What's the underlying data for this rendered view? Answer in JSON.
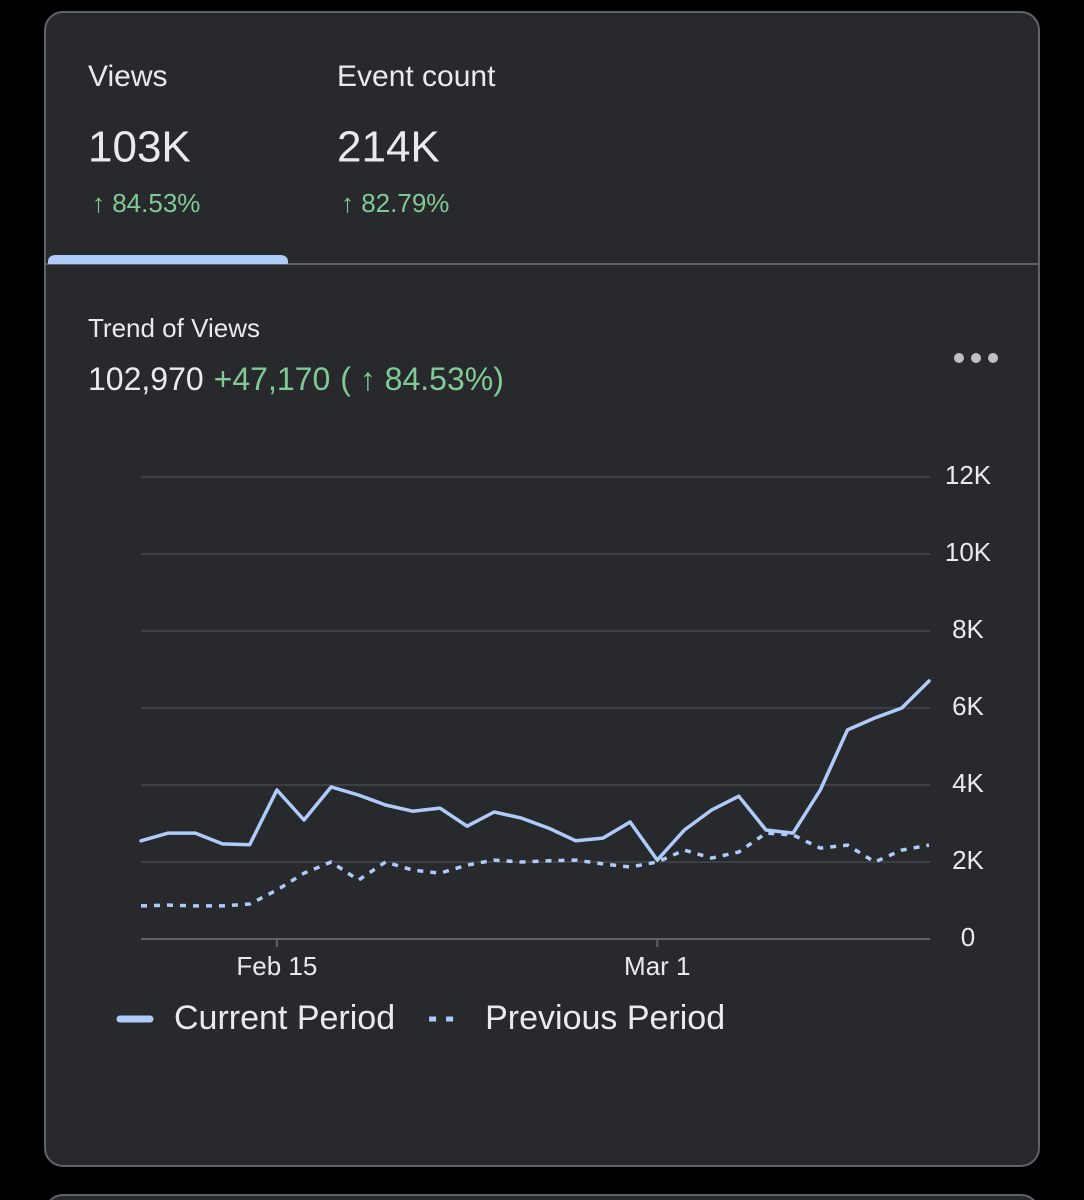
{
  "metrics": [
    {
      "label": "Views",
      "value": "103K",
      "change": "↑ 84.53%"
    },
    {
      "label": "Event count",
      "value": "214K",
      "change": "↑ 82.79%"
    }
  ],
  "chart_data": {
    "type": "line",
    "title": "Trend of Views",
    "total": "102,970",
    "change": "+47,170",
    "change_percent": "( ↑ 84.53%)",
    "categories": [
      null,
      null,
      null,
      null,
      null,
      "Feb 15",
      null,
      null,
      null,
      null,
      null,
      null,
      null,
      null,
      null,
      null,
      null,
      null,
      null,
      "Mar 1",
      null,
      null,
      null,
      null,
      null,
      null,
      null,
      null,
      null,
      null
    ],
    "series": [
      {
        "name": "Current Period",
        "color": "#aecbfa",
        "style": "solid",
        "values": [
          2550,
          2750,
          2750,
          2470,
          2450,
          3870,
          3090,
          3950,
          3740,
          3480,
          3320,
          3400,
          2930,
          3300,
          3140,
          2880,
          2550,
          2620,
          3040,
          2050,
          2830,
          3350,
          3710,
          2830,
          2750,
          3870,
          5430,
          5740,
          6000,
          6700
        ]
      },
      {
        "name": "Previous Period",
        "color": "#aecbfa",
        "style": "dotted",
        "values": [
          860,
          880,
          860,
          860,
          910,
          1270,
          1710,
          2000,
          1530,
          2000,
          1790,
          1710,
          1920,
          2050,
          2000,
          2030,
          2050,
          1950,
          1870,
          2000,
          2310,
          2100,
          2260,
          2750,
          2700,
          2360,
          2440,
          2000,
          2310,
          2440
        ]
      }
    ],
    "ylim": [
      0,
      12000
    ],
    "yticks": [
      0,
      {
        "value": 2000,
        "label": "2K"
      },
      {
        "value": 4000,
        "label": "4K"
      },
      {
        "value": 6000,
        "label": "6K"
      },
      {
        "value": 8000,
        "label": "8K"
      },
      {
        "value": 10000,
        "label": "10K"
      },
      {
        "value": 12000,
        "label": "12K"
      }
    ],
    "grid": true,
    "legend": "bottom-left"
  }
}
